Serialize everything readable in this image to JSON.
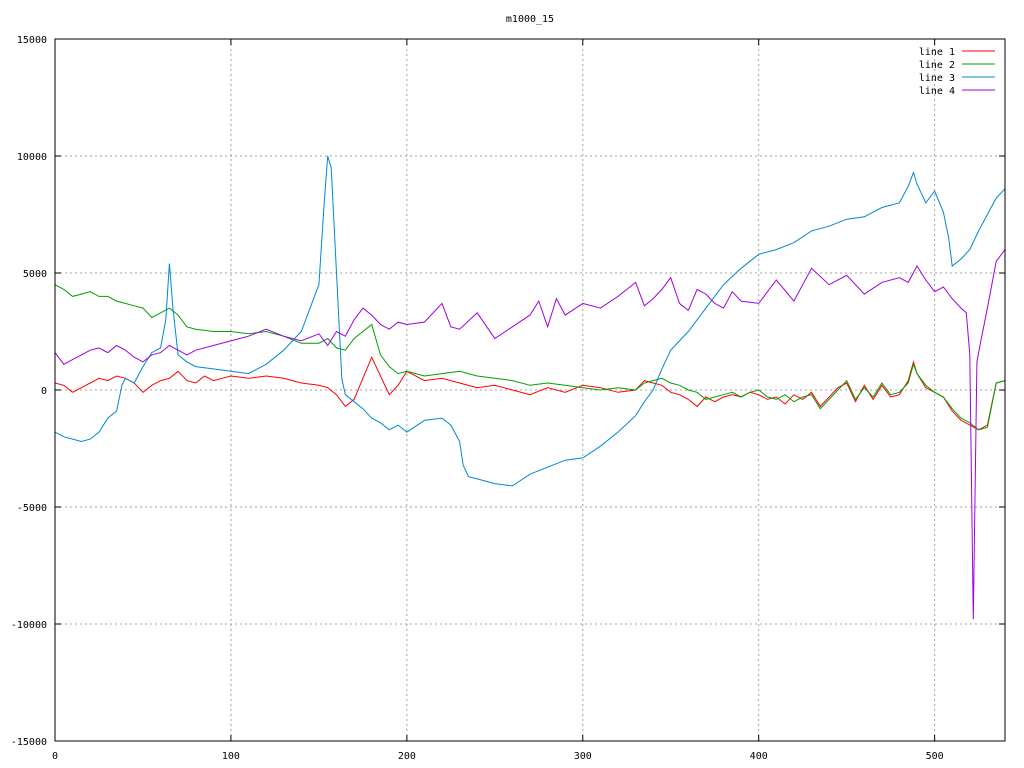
{
  "chart_data": {
    "type": "line",
    "title": "m1000_15",
    "xlabel": "",
    "ylabel": "",
    "xlim": [
      0,
      540
    ],
    "ylim": [
      -15000,
      15000
    ],
    "xticks": [
      0,
      100,
      200,
      300,
      400,
      500
    ],
    "yticks": [
      -15000,
      -10000,
      -5000,
      0,
      5000,
      10000,
      15000
    ],
    "grid": true,
    "legend_position": "top-right",
    "series": [
      {
        "name": "line 1",
        "color": "#ff0000",
        "x": [
          0,
          5,
          10,
          15,
          20,
          25,
          30,
          35,
          40,
          45,
          50,
          55,
          60,
          65,
          70,
          75,
          80,
          85,
          90,
          95,
          100,
          110,
          120,
          130,
          140,
          150,
          155,
          160,
          165,
          170,
          175,
          180,
          185,
          190,
          195,
          200,
          210,
          220,
          230,
          240,
          250,
          260,
          270,
          280,
          290,
          300,
          310,
          320,
          330,
          335,
          340,
          345,
          350,
          355,
          360,
          365,
          370,
          375,
          380,
          385,
          390,
          395,
          400,
          405,
          410,
          415,
          420,
          425,
          430,
          435,
          440,
          445,
          450,
          455,
          460,
          465,
          470,
          475,
          480,
          485,
          488,
          490,
          495,
          500,
          505,
          510,
          515,
          520,
          525,
          530,
          535,
          540
        ],
        "y": [
          300,
          200,
          -100,
          100,
          300,
          500,
          400,
          600,
          500,
          300,
          -100,
          200,
          400,
          500,
          800,
          400,
          300,
          600,
          400,
          500,
          600,
          500,
          600,
          500,
          300,
          200,
          100,
          -200,
          -700,
          -400,
          500,
          1400,
          600,
          -200,
          200,
          800,
          400,
          500,
          300,
          100,
          200,
          0,
          -200,
          100,
          -100,
          200,
          100,
          -100,
          0,
          400,
          300,
          200,
          -100,
          -200,
          -400,
          -700,
          -300,
          -500,
          -300,
          -200,
          -300,
          -100,
          -200,
          -400,
          -300,
          -600,
          -200,
          -400,
          -100,
          -700,
          -300,
          100,
          300,
          -500,
          200,
          -400,
          200,
          -300,
          -200,
          400,
          1200,
          700,
          100,
          -100,
          -300,
          -900,
          -1300,
          -1500,
          -1700,
          -1500,
          300,
          400
        ]
      },
      {
        "name": "line 2",
        "color": "#00a000",
        "x": [
          0,
          5,
          10,
          15,
          20,
          25,
          30,
          35,
          40,
          45,
          50,
          55,
          60,
          65,
          70,
          75,
          80,
          90,
          100,
          110,
          120,
          130,
          140,
          150,
          155,
          160,
          165,
          170,
          175,
          180,
          185,
          190,
          195,
          200,
          210,
          220,
          230,
          240,
          250,
          260,
          270,
          280,
          290,
          300,
          310,
          320,
          330,
          335,
          340,
          345,
          350,
          355,
          360,
          365,
          370,
          375,
          380,
          385,
          390,
          395,
          400,
          405,
          410,
          415,
          420,
          425,
          430,
          435,
          440,
          445,
          450,
          455,
          460,
          465,
          470,
          475,
          480,
          485,
          488,
          490,
          495,
          500,
          505,
          510,
          515,
          520,
          525,
          530,
          535,
          540
        ],
        "y": [
          4500,
          4300,
          4000,
          4100,
          4200,
          4000,
          4000,
          3800,
          3700,
          3600,
          3500,
          3100,
          3300,
          3500,
          3200,
          2700,
          2600,
          2500,
          2500,
          2400,
          2500,
          2300,
          2000,
          2000,
          2200,
          1800,
          1700,
          2200,
          2500,
          2800,
          1500,
          1000,
          700,
          800,
          600,
          700,
          800,
          600,
          500,
          400,
          200,
          300,
          200,
          100,
          0,
          100,
          0,
          300,
          400,
          500,
          300,
          200,
          0,
          -100,
          -400,
          -300,
          -200,
          -100,
          -300,
          -100,
          0,
          -300,
          -400,
          -200,
          -500,
          -300,
          -200,
          -800,
          -400,
          0,
          400,
          -400,
          100,
          -300,
          300,
          -200,
          -100,
          300,
          1100,
          700,
          200,
          -100,
          -300,
          -800,
          -1200,
          -1400,
          -1700,
          -1600,
          300,
          400
        ]
      },
      {
        "name": "line 3",
        "color": "#0088d0",
        "x": [
          0,
          5,
          10,
          15,
          20,
          25,
          30,
          35,
          38,
          40,
          45,
          50,
          55,
          60,
          63,
          65,
          67,
          70,
          75,
          80,
          90,
          100,
          110,
          120,
          130,
          140,
          145,
          150,
          153,
          155,
          157,
          160,
          163,
          165,
          170,
          175,
          180,
          185,
          190,
          195,
          200,
          210,
          220,
          225,
          230,
          232,
          235,
          240,
          250,
          260,
          270,
          280,
          290,
          300,
          310,
          320,
          330,
          335,
          340,
          345,
          350,
          355,
          360,
          365,
          370,
          380,
          390,
          400,
          410,
          420,
          430,
          440,
          450,
          460,
          470,
          480,
          485,
          488,
          490,
          495,
          500,
          505,
          508,
          510,
          515,
          520,
          525,
          530,
          535,
          540
        ],
        "y": [
          -1800,
          -2000,
          -2100,
          -2200,
          -2100,
          -1800,
          -1200,
          -900,
          200,
          500,
          300,
          1000,
          1600,
          1800,
          3000,
          5400,
          3500,
          1500,
          1200,
          1000,
          900,
          800,
          700,
          1100,
          1700,
          2500,
          3500,
          4500,
          8000,
          10000,
          9500,
          5000,
          500,
          -200,
          -500,
          -800,
          -1200,
          -1400,
          -1700,
          -1500,
          -1800,
          -1300,
          -1200,
          -1500,
          -2200,
          -3200,
          -3700,
          -3800,
          -4000,
          -4100,
          -3600,
          -3300,
          -3000,
          -2900,
          -2400,
          -1800,
          -1100,
          -500,
          0,
          900,
          1700,
          2100,
          2500,
          3000,
          3500,
          4500,
          5200,
          5800,
          6000,
          6300,
          6800,
          7000,
          7300,
          7400,
          7800,
          8000,
          8700,
          9300,
          8800,
          8000,
          8500,
          7600,
          6500,
          5300,
          5600,
          6000,
          6800,
          7500,
          8200,
          8600
        ]
      },
      {
        "name": "line 4",
        "color": "#a000e0",
        "x": [
          0,
          5,
          10,
          15,
          20,
          25,
          30,
          35,
          40,
          45,
          50,
          55,
          60,
          65,
          70,
          75,
          80,
          90,
          100,
          110,
          120,
          130,
          140,
          150,
          155,
          160,
          165,
          170,
          175,
          180,
          185,
          190,
          195,
          200,
          210,
          220,
          225,
          230,
          240,
          250,
          260,
          270,
          275,
          280,
          285,
          290,
          300,
          310,
          320,
          330,
          335,
          340,
          345,
          350,
          355,
          360,
          365,
          370,
          375,
          380,
          385,
          390,
          400,
          410,
          420,
          430,
          440,
          450,
          460,
          470,
          480,
          485,
          490,
          495,
          500,
          505,
          510,
          515,
          518,
          520,
          522,
          524,
          526,
          530,
          535,
          540
        ],
        "y": [
          1600,
          1100,
          1300,
          1500,
          1700,
          1800,
          1600,
          1900,
          1700,
          1400,
          1200,
          1500,
          1600,
          1900,
          1700,
          1500,
          1700,
          1900,
          2100,
          2300,
          2600,
          2300,
          2100,
          2400,
          1900,
          2500,
          2300,
          3000,
          3500,
          3200,
          2800,
          2600,
          2900,
          2800,
          2900,
          3700,
          2700,
          2600,
          3300,
          2200,
          2700,
          3200,
          3800,
          2700,
          3900,
          3200,
          3700,
          3500,
          4000,
          4600,
          3600,
          3900,
          4300,
          4800,
          3700,
          3400,
          4300,
          4100,
          3700,
          3500,
          4200,
          3800,
          3700,
          4700,
          3800,
          5200,
          4500,
          4900,
          4100,
          4600,
          4800,
          4600,
          5300,
          4700,
          4200,
          4400,
          3900,
          3500,
          3300,
          1500,
          -9800,
          1200,
          2000,
          3500,
          5500,
          6000
        ]
      }
    ]
  }
}
